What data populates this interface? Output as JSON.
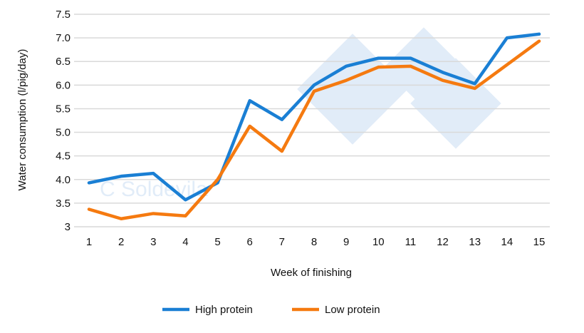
{
  "chart_data": {
    "type": "line",
    "title": "",
    "xlabel": "Week of finishing",
    "ylabel": "Water consumption (l/pig/day)",
    "categories": [
      "1",
      "2",
      "3",
      "4",
      "5",
      "6",
      "7",
      "8",
      "9",
      "10",
      "11",
      "12",
      "13",
      "14",
      "15"
    ],
    "ylim": [
      3,
      7.5
    ],
    "yticks": [
      "3",
      "3.5",
      "4.0",
      "4.5",
      "5.0",
      "5.5",
      "6.0",
      "6.5",
      "7.0",
      "7.5"
    ],
    "grid": true,
    "legend_position": "bottom",
    "series": [
      {
        "name": "High protein",
        "color": "#1a7fd4",
        "values": [
          3.93,
          4.07,
          4.13,
          3.57,
          3.93,
          5.67,
          5.27,
          6.0,
          6.4,
          6.57,
          6.57,
          6.27,
          6.03,
          7.0,
          7.08
        ]
      },
      {
        "name": "Low protein",
        "color": "#f57a10",
        "values": [
          3.37,
          3.17,
          3.28,
          3.23,
          4.0,
          5.13,
          4.6,
          5.87,
          6.1,
          6.38,
          6.4,
          6.1,
          5.93,
          6.43,
          6.93
        ]
      }
    ],
    "watermark": "C Soldevila"
  }
}
